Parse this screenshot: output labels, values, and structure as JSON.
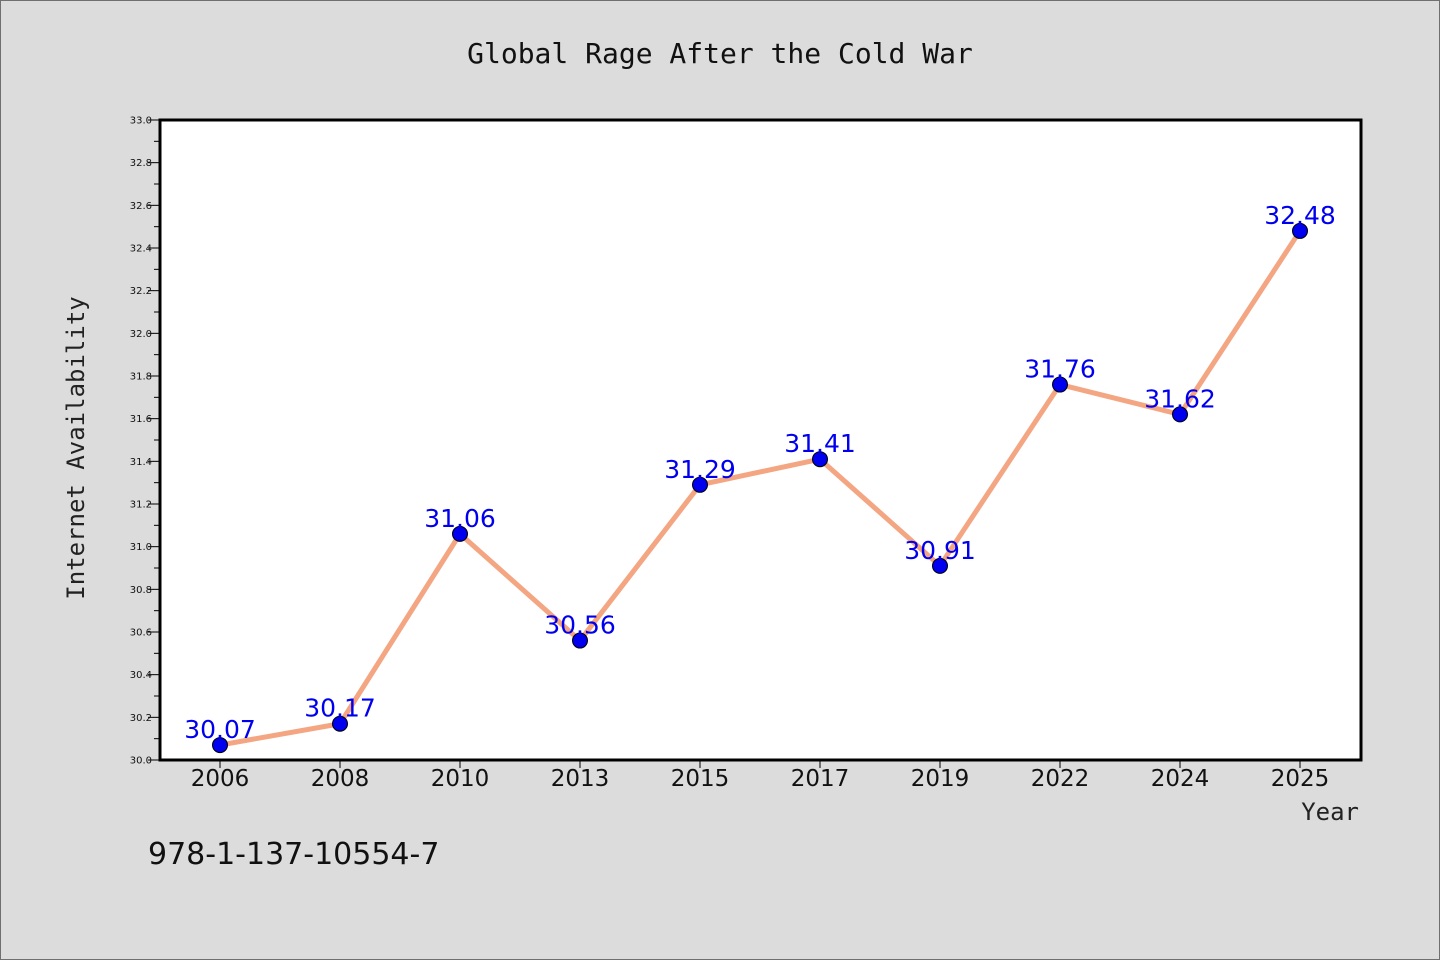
{
  "chart_data": {
    "type": "line",
    "title": "Global Rage After the Cold War",
    "xlabel": "Year",
    "ylabel": "Internet Availability",
    "categories": [
      "2006",
      "2008",
      "2010",
      "2013",
      "2015",
      "2017",
      "2019",
      "2022",
      "2024",
      "2025"
    ],
    "series": [
      {
        "values": [
          30.07,
          30.17,
          31.06,
          30.56,
          31.29,
          31.41,
          30.91,
          31.76,
          31.62,
          32.48
        ]
      }
    ],
    "data_labels": [
      "30.07",
      "30.17",
      "31.06",
      "30.56",
      "31.29",
      "31.41",
      "30.91",
      "31.76",
      "31.62",
      "32.48"
    ],
    "ylim": [
      30.0,
      33.0
    ],
    "yticks": [
      "30.0",
      "30.2",
      "30.4",
      "30.6",
      "30.8",
      "31.0",
      "31.2",
      "31.4",
      "31.6",
      "31.8",
      "32.0",
      "32.2",
      "32.4",
      "32.6",
      "32.8",
      "33.0"
    ],
    "grid": false,
    "colors": {
      "line": "#f4a582",
      "marker": "#0000ee",
      "data_label": "#0000ee",
      "background": "#dcdcdc",
      "plot_background": "#ffffff"
    }
  },
  "footer": {
    "isbn": "978-1-137-10554-7"
  }
}
